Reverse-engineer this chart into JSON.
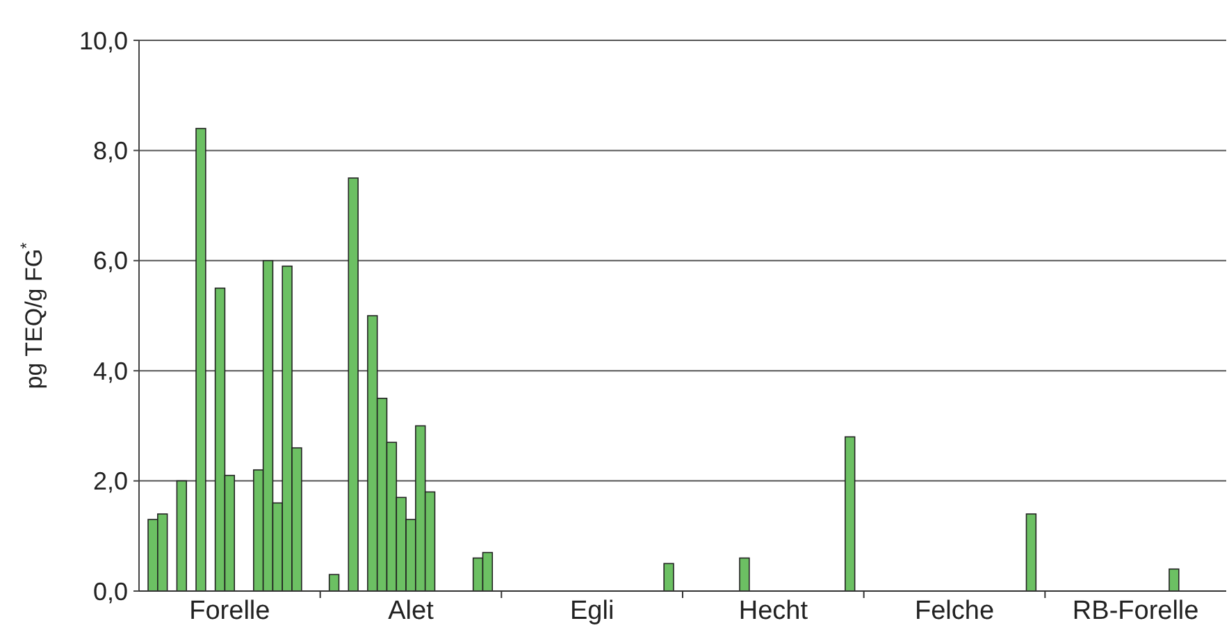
{
  "chart_data": {
    "type": "bar",
    "ylabel": "pg TEQ/g FG$^{*}$",
    "categories": [
      "Forelle",
      "Alet",
      "Egli",
      "Hecht",
      "Felche",
      "RB-Forelle"
    ],
    "ylim": [
      0,
      10
    ],
    "yticks": [
      {
        "value": 0,
        "label": "0,0"
      },
      {
        "value": 2,
        "label": "2,0"
      },
      {
        "value": 4,
        "label": "4,0"
      },
      {
        "value": 6,
        "label": "6,0"
      },
      {
        "value": 8,
        "label": "8,0"
      },
      {
        "value": 10,
        "label": "10,0"
      }
    ],
    "grid": "y",
    "series": [
      {
        "color": "#6cc063",
        "values": [
          1.3,
          0.3,
          null,
          null,
          null,
          null
        ]
      },
      {
        "color": "#6cc063",
        "values": [
          1.4,
          null,
          null,
          null,
          null,
          null
        ]
      },
      {
        "color": "#6cc063",
        "values": [
          null,
          7.5,
          null,
          null,
          null,
          null
        ]
      },
      {
        "color": "#6cc063",
        "values": [
          2.0,
          null,
          null,
          null,
          null,
          null
        ]
      },
      {
        "color": "#6cc063",
        "values": [
          null,
          5.0,
          null,
          null,
          null,
          null
        ]
      },
      {
        "color": "#6cc063",
        "values": [
          8.4,
          3.5,
          null,
          0.6,
          null,
          null
        ]
      },
      {
        "color": "#6cc063",
        "values": [
          null,
          2.7,
          null,
          null,
          null,
          null
        ]
      },
      {
        "color": "#6cc063",
        "values": [
          5.5,
          1.7,
          null,
          null,
          null,
          null
        ]
      },
      {
        "color": "#6cc063",
        "values": [
          2.1,
          1.3,
          null,
          null,
          null,
          null
        ]
      },
      {
        "color": "#6cc063",
        "values": [
          null,
          3.0,
          null,
          null,
          null,
          null
        ]
      },
      {
        "color": "#6cc063",
        "values": [
          null,
          1.8,
          null,
          null,
          null,
          null
        ]
      },
      {
        "color": "#6cc063",
        "values": [
          2.2,
          null,
          null,
          null,
          null,
          null
        ]
      },
      {
        "color": "#6cc063",
        "values": [
          6.0,
          null,
          null,
          null,
          null,
          0.4
        ]
      },
      {
        "color": "#6cc063",
        "values": [
          1.6,
          null,
          null,
          null,
          null,
          null
        ]
      },
      {
        "color": "#6cc063",
        "values": [
          5.9,
          null,
          null,
          null,
          null,
          null
        ]
      },
      {
        "color": "#6cc063",
        "values": [
          2.6,
          0.6,
          null,
          null,
          null,
          null
        ]
      },
      {
        "color": "#6cc063",
        "values": [
          null,
          0.7,
          0.5,
          2.8,
          1.4,
          null
        ]
      }
    ]
  }
}
